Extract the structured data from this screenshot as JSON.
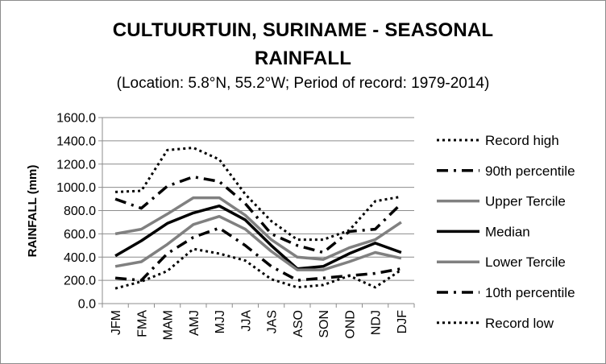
{
  "chart_data": {
    "type": "line",
    "title_lines": [
      "CULTUURTUIN, SURINAME - SEASONAL",
      "RAINFALL"
    ],
    "subtitle": "(Location: 5.8°N, 55.2°W; Period of record: 1979-2014)",
    "xlabel": "",
    "ylabel": "RAINFALL (mm)",
    "ylim": [
      0,
      1600
    ],
    "yticks": [
      "0.0",
      "200.0",
      "400.0",
      "600.0",
      "800.0",
      "1000.0",
      "1200.0",
      "1400.0",
      "1600.0"
    ],
    "grid": true,
    "legend_position": "right",
    "categories": [
      "JFM",
      "FMA",
      "MAM",
      "AMJ",
      "MJJ",
      "JJA",
      "JAS",
      "ASO",
      "SON",
      "OND",
      "NDJ",
      "DJF"
    ],
    "series": [
      {
        "name": "Record high",
        "style": "dotted",
        "color": "#000000",
        "values": [
          960,
          970,
          1320,
          1340,
          1240,
          940,
          710,
          550,
          550,
          630,
          880,
          920
        ]
      },
      {
        "name": "90th percentile",
        "style": "dashdot",
        "color": "#000000",
        "values": [
          900,
          820,
          1010,
          1090,
          1050,
          860,
          600,
          500,
          440,
          620,
          640,
          860
        ]
      },
      {
        "name": "Upper Tercile",
        "style": "solid",
        "color": "#808080",
        "values": [
          600,
          640,
          770,
          910,
          910,
          760,
          550,
          400,
          380,
          480,
          550,
          700
        ]
      },
      {
        "name": "Median",
        "style": "solid",
        "color": "#000000",
        "values": [
          410,
          540,
          690,
          780,
          840,
          720,
          500,
          300,
          320,
          430,
          520,
          440
        ]
      },
      {
        "name": "Lower Tercile",
        "style": "solid",
        "color": "#808080",
        "values": [
          320,
          360,
          510,
          680,
          750,
          640,
          450,
          290,
          290,
          360,
          440,
          390
        ]
      },
      {
        "name": "10th percentile",
        "style": "dashdot",
        "color": "#000000",
        "values": [
          220,
          200,
          430,
          570,
          650,
          500,
          320,
          200,
          220,
          240,
          260,
          300
        ]
      },
      {
        "name": "Record low",
        "style": "dotted",
        "color": "#000000",
        "values": [
          130,
          190,
          280,
          470,
          430,
          370,
          210,
          140,
          160,
          240,
          140,
          290
        ]
      }
    ]
  }
}
